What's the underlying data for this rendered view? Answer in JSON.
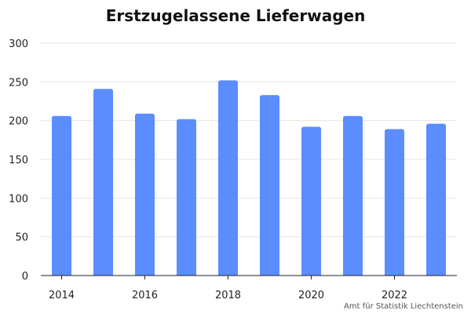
{
  "chart_data": {
    "type": "bar",
    "title": "Erstzugelassene Lieferwagen",
    "xlabel": "",
    "ylabel": "",
    "categories": [
      "2014",
      "2015",
      "2016",
      "2017",
      "2018",
      "2019",
      "2020",
      "2021",
      "2022",
      "2023"
    ],
    "values": [
      206,
      241,
      209,
      202,
      252,
      233,
      192,
      206,
      189,
      196
    ],
    "x_tick_labels": [
      "2014",
      "2016",
      "2018",
      "2020",
      "2022"
    ],
    "y_tick_labels": [
      "0",
      "50",
      "100",
      "150",
      "200",
      "250",
      "300"
    ],
    "ylim": [
      0,
      300
    ],
    "grid": true,
    "legend": "none",
    "source": "Amt für Statistik Liechtenstein",
    "colors": {
      "bar": "#5B8DFF",
      "grid": "#E6E6E6",
      "axis": "#222222"
    }
  }
}
